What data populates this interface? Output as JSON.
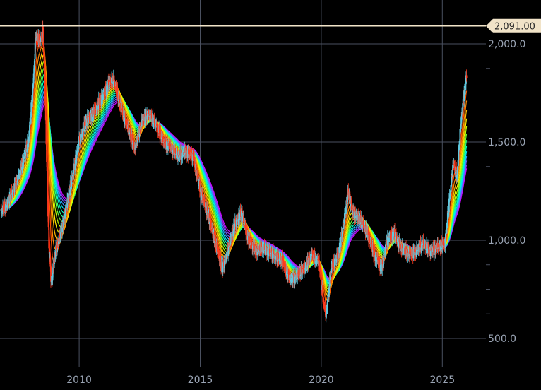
{
  "chart_data": {
    "type": "line",
    "title": "",
    "xlabel": "",
    "ylabel": "",
    "xlim": [
      2006.73,
      2026.8
    ],
    "ylim": [
      300,
      2180
    ],
    "grid": true,
    "x_ticks": [
      {
        "value": 2010,
        "label": "2010"
      },
      {
        "value": 2015,
        "label": "2015"
      },
      {
        "value": 2020,
        "label": "2020"
      },
      {
        "value": 2025,
        "label": "2025"
      }
    ],
    "y_ticks": [
      {
        "value": 2000,
        "label": "2,000.0"
      },
      {
        "value": 1500,
        "label": "1,500.0"
      },
      {
        "value": 1000,
        "label": "1,000.0"
      },
      {
        "value": 500,
        "label": "500.0"
      }
    ],
    "y_minor_ticks": [
      1875,
      1375,
      1250,
      875,
      750,
      625
    ],
    "price_line": {
      "value": 2091,
      "label": "2,091.00",
      "color": "#f1e3c8"
    },
    "moving_average_ribbon_colors": [
      "#ff2200",
      "#ff5500",
      "#ff8800",
      "#ffbb00",
      "#ffee00",
      "#bbff00",
      "#66ff33",
      "#22ff88",
      "#00ffcc",
      "#00ddff",
      "#3399ff",
      "#6666ff",
      "#9933ff",
      "#cc00ff"
    ],
    "colors": {
      "up": "#5fc9e0",
      "down": "#ff3b1f",
      "grid": "#4a5060",
      "axis_text": "#9aa4b4"
    },
    "series": [
      {
        "x": [
          2006.75,
          2007.0,
          2007.5,
          2007.9,
          2008.1,
          2008.2,
          2008.4,
          2008.5,
          2008.6,
          2008.75,
          2008.85,
          2009.0,
          2009.3,
          2009.6,
          2010.0,
          2010.3,
          2010.6,
          2010.9,
          2011.2,
          2011.4,
          2011.7,
          2012.0,
          2012.3,
          2012.6,
          2012.9,
          2013.2,
          2013.5,
          2013.8,
          2014.1,
          2014.4,
          2014.7,
          2015.0,
          2015.3,
          2015.6,
          2015.9,
          2016.1,
          2016.4,
          2016.7,
          2017.0,
          2017.3,
          2017.6,
          2018.0,
          2018.4,
          2018.7,
          2019.0,
          2019.3,
          2019.6,
          2019.9,
          2020.1,
          2020.2,
          2020.4,
          2020.7,
          2021.0,
          2021.1,
          2021.3,
          2021.6,
          2021.9,
          2022.2,
          2022.5,
          2022.7,
          2023.0,
          2023.3,
          2023.6,
          2023.9,
          2024.2,
          2024.5,
          2024.8,
          2025.1,
          2025.3,
          2025.45,
          2025.6,
          2025.75,
          2025.9,
          2026.0
        ],
        "y": [
          1143,
          1180,
          1324,
          1503,
          1790,
          2043,
          2007,
          2080,
          1683,
          963,
          783,
          927,
          1071,
          1251,
          1503,
          1611,
          1647,
          1719,
          1791,
          1827,
          1683,
          1575,
          1467,
          1611,
          1647,
          1575,
          1503,
          1467,
          1431,
          1449,
          1431,
          1251,
          1143,
          1000,
          856,
          927,
          1071,
          1143,
          1000,
          945,
          963,
          927,
          891,
          801,
          820,
          856,
          927,
          891,
          675,
          622,
          856,
          927,
          1143,
          1251,
          1143,
          1108,
          1036,
          927,
          856,
          1000,
          1036,
          963,
          927,
          945,
          981,
          945,
          963,
          981,
          1215,
          1395,
          1323,
          1575,
          1755,
          1827
        ]
      }
    ]
  }
}
